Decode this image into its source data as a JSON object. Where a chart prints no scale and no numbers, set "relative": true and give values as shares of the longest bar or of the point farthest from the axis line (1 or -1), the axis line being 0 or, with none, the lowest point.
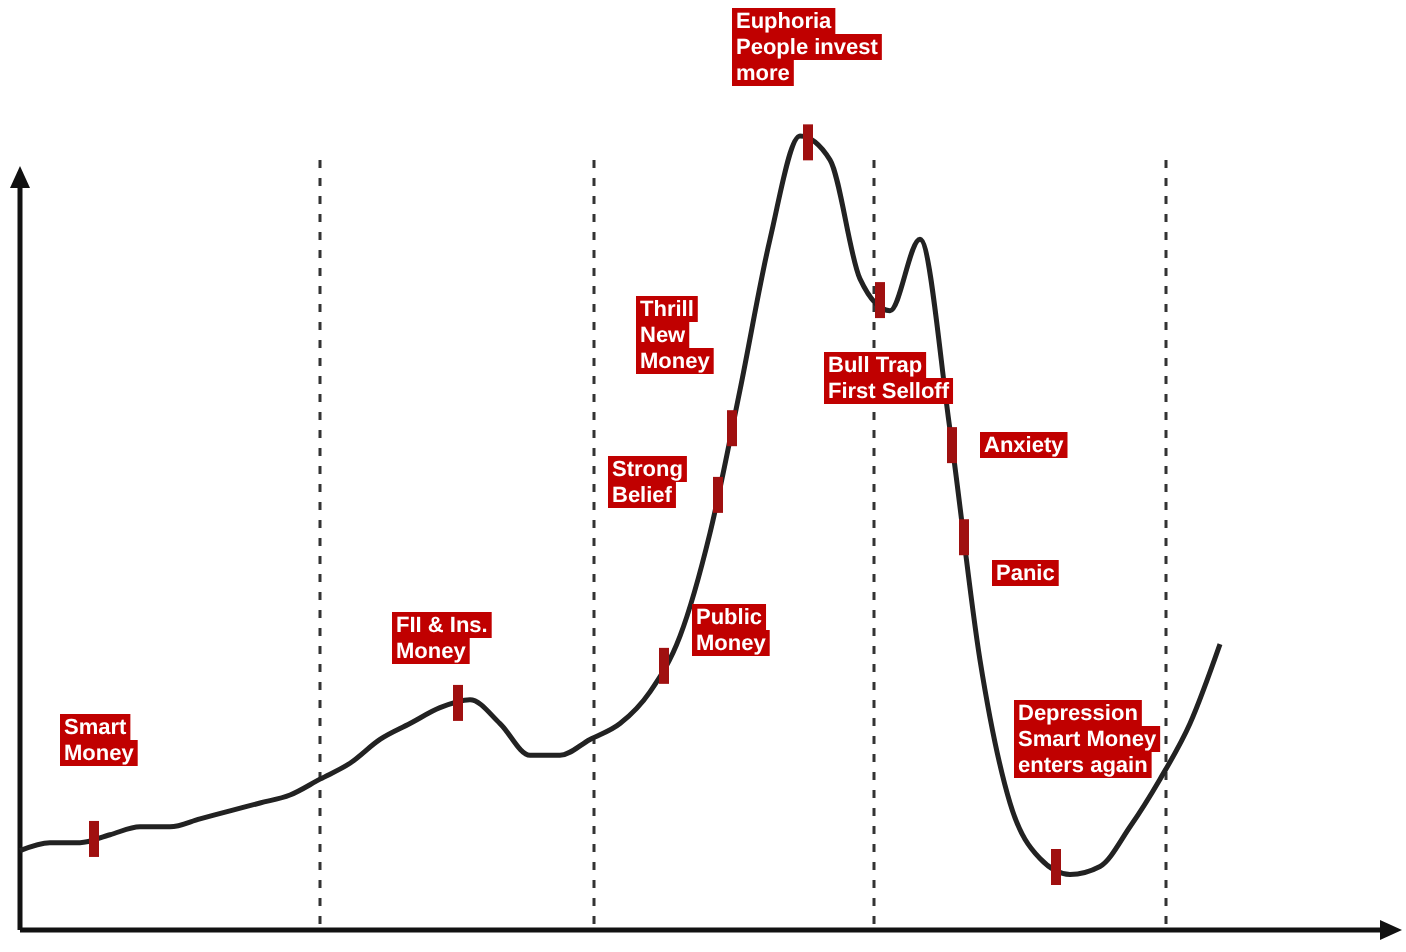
{
  "chart_data": {
    "type": "line",
    "relative": true,
    "categories": [
      null,
      null,
      null,
      null,
      null,
      null,
      null,
      null,
      null,
      null,
      null,
      null,
      null,
      null,
      null,
      null,
      null,
      null,
      null,
      null,
      null,
      null,
      null,
      null,
      null,
      null,
      null,
      null,
      null,
      null,
      null,
      null,
      null,
      null,
      null,
      null,
      null,
      null,
      null,
      null,
      null
    ],
    "series": [
      {
        "color": "#222222",
        "values": [
          0.1,
          0.11,
          0.11,
          0.12,
          0.13,
          0.13,
          0.14,
          0.15,
          0.16,
          0.17,
          0.19,
          0.21,
          0.24,
          0.26,
          0.28,
          0.29,
          0.26,
          0.22,
          0.22,
          0.24,
          0.26,
          0.3,
          0.37,
          0.5,
          0.68,
          0.87,
          1.0,
          0.97,
          0.82,
          0.78,
          0.87,
          0.63,
          0.34,
          0.16,
          0.09,
          0.07,
          0.08,
          0.13,
          0.19,
          0.26,
          0.36
        ]
      }
    ],
    "annotations": [
      "Smart Money",
      "FII & Ins. Money",
      "Public Money",
      "Strong Belief",
      "Thrill New Money",
      "Euphoria People invest more",
      "Bull Trap First Selloff",
      "Anxiety",
      "Panic",
      "Depression Smart Money enters again"
    ],
    "marker": "none",
    "line_style": "solid"
  }
}
